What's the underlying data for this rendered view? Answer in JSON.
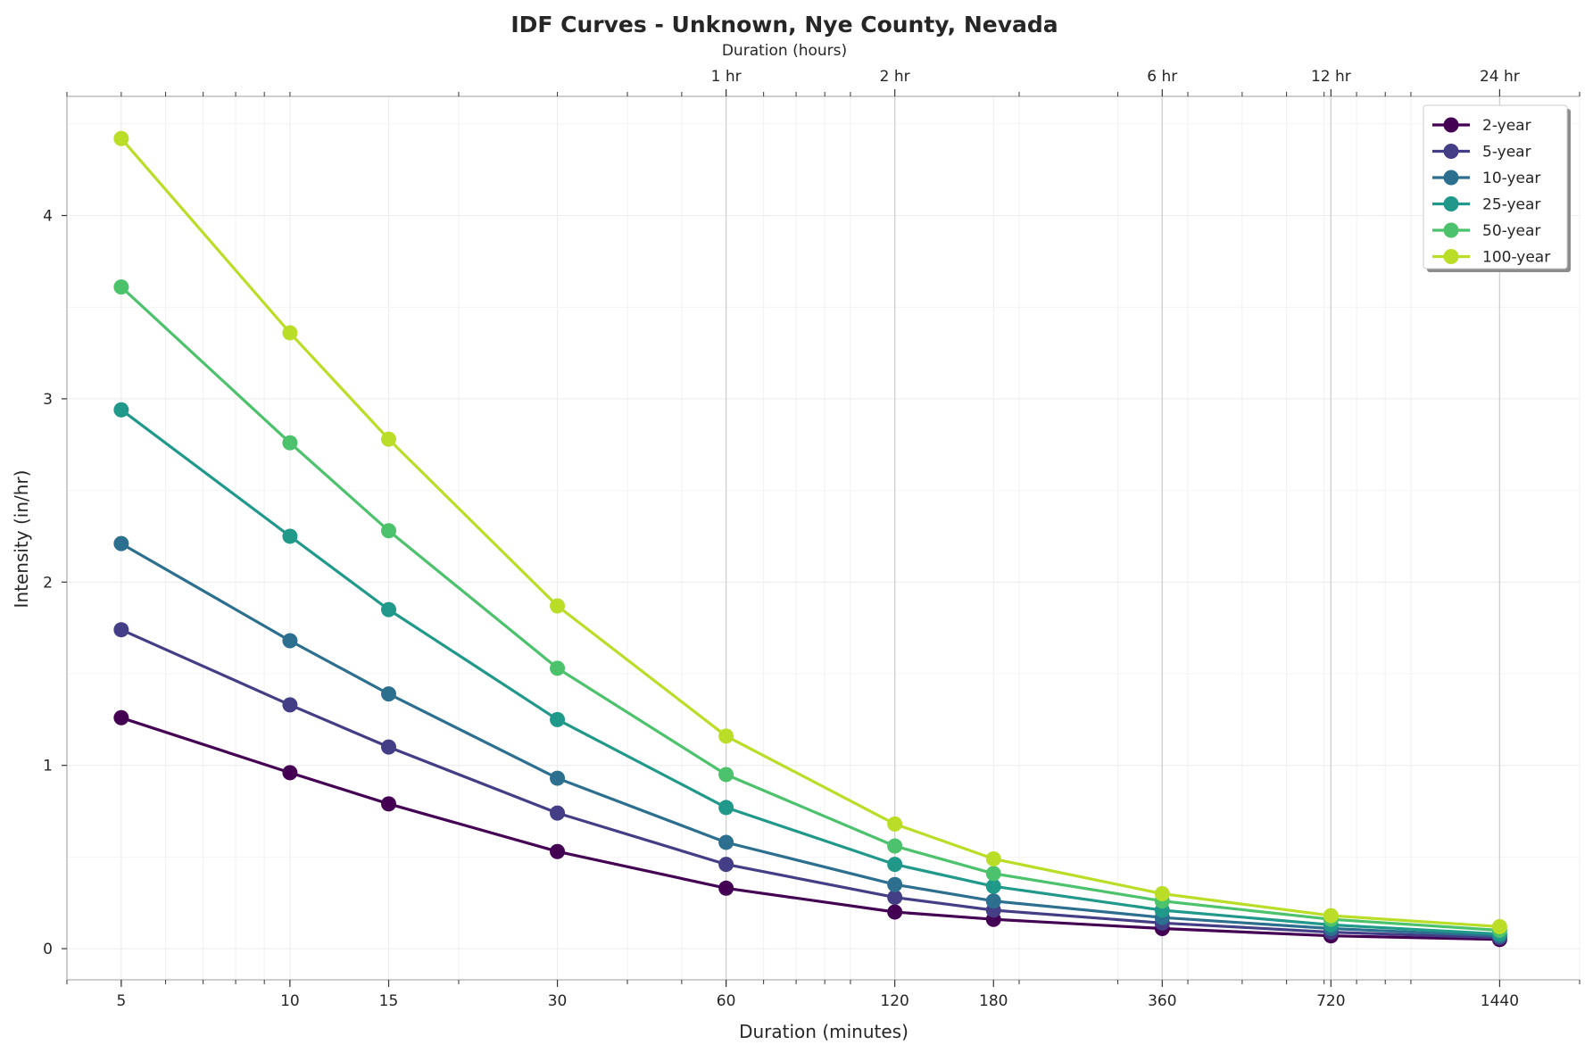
{
  "chart_data": {
    "type": "line",
    "title": "IDF Curves - Unknown, Nye County, Nevada",
    "xlabel": "Duration (minutes)",
    "ylabel": "Intensity (in/hr)",
    "top_xlabel": "Duration (hours)",
    "x_scale": "log",
    "xlim": [
      4,
      2000
    ],
    "ylim": [
      -0.17,
      4.65
    ],
    "grid": true,
    "legend_position": "top-right",
    "x": [
      5,
      10,
      15,
      30,
      60,
      120,
      180,
      360,
      720,
      1440
    ],
    "x_tick_labels": [
      "5",
      "10",
      "15",
      "30",
      "60",
      "120",
      "180",
      "360",
      "720",
      "1440"
    ],
    "y_ticks": [
      0,
      1,
      2,
      3,
      4
    ],
    "y_tick_labels": [
      "0",
      "1",
      "2",
      "3",
      "4"
    ],
    "top_ticks": [
      {
        "x": 60,
        "label": "1 hr"
      },
      {
        "x": 120,
        "label": "2 hr"
      },
      {
        "x": 360,
        "label": "6 hr"
      },
      {
        "x": 720,
        "label": "12 hr"
      },
      {
        "x": 1440,
        "label": "24 hr"
      }
    ],
    "series": [
      {
        "name": "2-year",
        "color": "#440154",
        "values": [
          1.26,
          0.96,
          0.79,
          0.53,
          0.33,
          0.2,
          0.16,
          0.11,
          0.07,
          0.05
        ]
      },
      {
        "name": "5-year",
        "color": "#433e85",
        "values": [
          1.74,
          1.33,
          1.1,
          0.74,
          0.46,
          0.28,
          0.21,
          0.14,
          0.09,
          0.06
        ]
      },
      {
        "name": "10-year",
        "color": "#2c6f8e",
        "values": [
          2.21,
          1.68,
          1.39,
          0.93,
          0.58,
          0.35,
          0.26,
          0.17,
          0.11,
          0.07
        ]
      },
      {
        "name": "25-year",
        "color": "#20998a",
        "values": [
          2.94,
          2.25,
          1.85,
          1.25,
          0.77,
          0.46,
          0.34,
          0.21,
          0.13,
          0.08
        ]
      },
      {
        "name": "50-year",
        "color": "#4cc26c",
        "values": [
          3.61,
          2.76,
          2.28,
          1.53,
          0.95,
          0.56,
          0.41,
          0.26,
          0.16,
          0.1
        ]
      },
      {
        "name": "100-year",
        "color": "#bade28",
        "values": [
          4.42,
          3.36,
          2.78,
          1.87,
          1.16,
          0.68,
          0.49,
          0.3,
          0.18,
          0.12
        ]
      }
    ]
  }
}
